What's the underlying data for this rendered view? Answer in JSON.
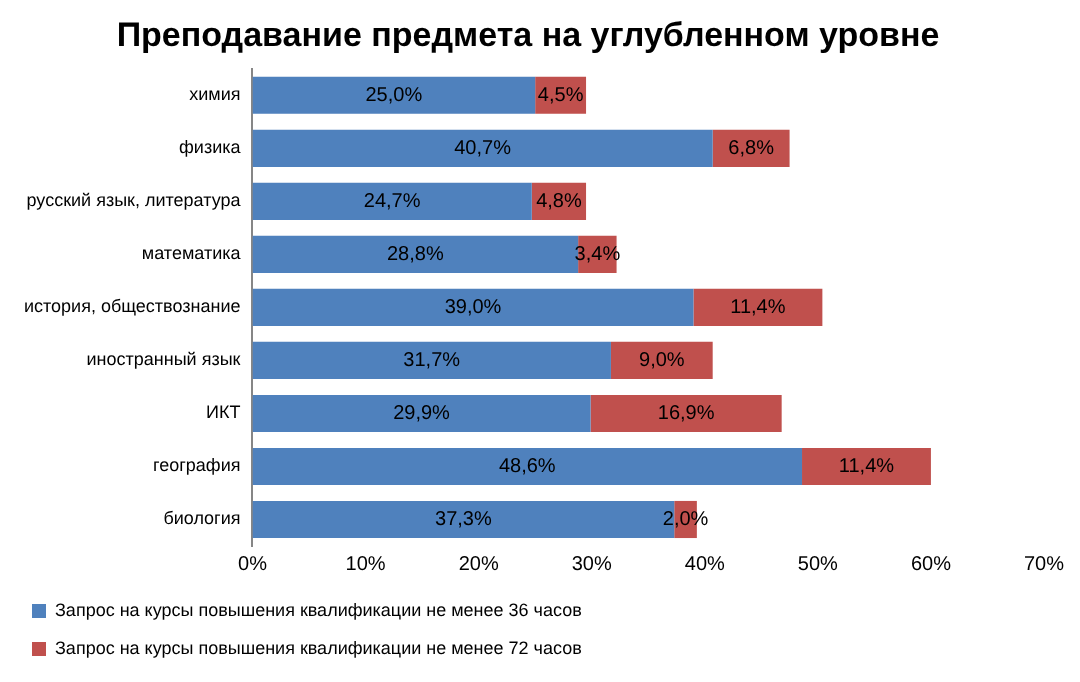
{
  "chart_data": {
    "type": "bar",
    "orientation": "horizontal",
    "stacked": true,
    "title": "Преподавание предмета на углубленном уровне",
    "categories": [
      "химия",
      "физика",
      "русский язык, литература",
      "математика",
      "история, обществознание",
      "иностранный язык",
      "ИКТ",
      "география",
      "биология"
    ],
    "series": [
      {
        "name": "Запрос на курсы повышения квалификации не менее 36 часов",
        "color": "#4f81bd",
        "values": [
          25.0,
          40.7,
          24.7,
          28.8,
          39.0,
          31.7,
          29.9,
          48.6,
          37.3
        ],
        "value_labels": [
          "25,0%",
          "40,7%",
          "24,7%",
          "28,8%",
          "39,0%",
          "31,7%",
          "29,9%",
          "48,6%",
          "37,3%"
        ]
      },
      {
        "name": "Запрос на курсы повышения квалификации не менее 72 часов",
        "color": "#c0504d",
        "values": [
          4.5,
          6.8,
          4.8,
          3.4,
          11.4,
          9.0,
          16.9,
          11.4,
          2.0
        ],
        "value_labels": [
          "4,5%",
          "6,8%",
          "4,8%",
          "3,4%",
          "11,4%",
          "9,0%",
          "16,9%",
          "11,4%",
          "2,0%"
        ]
      }
    ],
    "xlim": [
      0,
      70
    ],
    "xticks": [
      {
        "value": 0,
        "label": "0%"
      },
      {
        "value": 10,
        "label": "10%"
      },
      {
        "value": 20,
        "label": "20%"
      },
      {
        "value": 30,
        "label": "30%"
      },
      {
        "value": 40,
        "label": "40%"
      },
      {
        "value": 50,
        "label": "50%"
      },
      {
        "value": 60,
        "label": "60%"
      },
      {
        "value": 70,
        "label": "70%"
      }
    ],
    "grid": false,
    "legend": "bottom"
  }
}
